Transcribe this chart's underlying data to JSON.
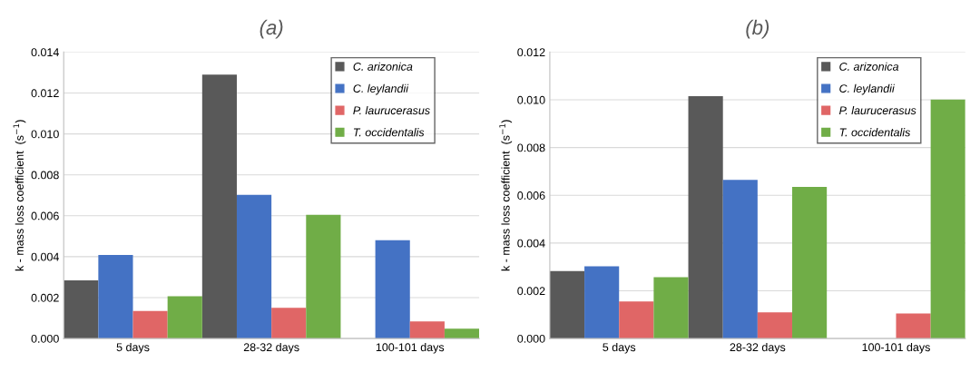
{
  "chart_data": [
    {
      "type": "bar",
      "title": "(a)",
      "ylabel": "k - mass loss coefficient  (s$^{−1}$)",
      "categories": [
        "5 days",
        "28-32 days",
        "100-101 days"
      ],
      "ylim": [
        0,
        0.014
      ],
      "yticks": [
        {
          "value": 0,
          "label": "0.000"
        },
        {
          "value": 0.002,
          "label": "0.002"
        },
        {
          "value": 0.004,
          "label": "0.004"
        },
        {
          "value": 0.006,
          "label": "0.006"
        },
        {
          "value": 0.008,
          "label": "0.008"
        },
        {
          "value": 0.01,
          "label": "0.010"
        },
        {
          "value": 0.012,
          "label": "0.012"
        },
        {
          "value": 0.014,
          "label": "0.014"
        }
      ],
      "grid": "y",
      "legend": "top right",
      "series": [
        {
          "name": "C. arizonica",
          "color": "#595959",
          "values": [
            0.00284,
            0.0129,
            null
          ]
        },
        {
          "name": "C. leylandii",
          "color": "#4472c4",
          "values": [
            0.00408,
            0.00702,
            0.0048
          ]
        },
        {
          "name": "P. laurucerasus",
          "color": "#e06666",
          "values": [
            0.00135,
            0.0015,
            0.00084
          ]
        },
        {
          "name": "T. occidentalis",
          "color": "#70ad47",
          "values": [
            0.00207,
            0.00605,
            0.00048
          ]
        }
      ]
    },
    {
      "type": "bar",
      "title": "(b)",
      "ylabel": "k - mass loss coefficient  (s$^{−1}$)",
      "categories": [
        "5 days",
        "28-32 days",
        "100-101 days"
      ],
      "ylim": [
        0,
        0.012
      ],
      "yticks": [
        {
          "value": 0,
          "label": "0.000"
        },
        {
          "value": 0.002,
          "label": "0.002"
        },
        {
          "value": 0.004,
          "label": "0.004"
        },
        {
          "value": 0.006,
          "label": "0.006"
        },
        {
          "value": 0.008,
          "label": "0.008"
        },
        {
          "value": 0.01,
          "label": "0.010"
        },
        {
          "value": 0.012,
          "label": "0.012"
        }
      ],
      "grid": "y",
      "legend": "top right",
      "series": [
        {
          "name": "C. arizonica",
          "color": "#595959",
          "values": [
            0.00283,
            0.01015,
            null
          ]
        },
        {
          "name": "C. leylandii",
          "color": "#4472c4",
          "values": [
            0.00303,
            0.00665,
            null
          ]
        },
        {
          "name": "P. laurucerasus",
          "color": "#e06666",
          "values": [
            0.00155,
            0.0011,
            0.00105
          ]
        },
        {
          "name": "T. occidentalis",
          "color": "#70ad47",
          "values": [
            0.00257,
            0.00635,
            0.01001
          ]
        }
      ]
    }
  ]
}
